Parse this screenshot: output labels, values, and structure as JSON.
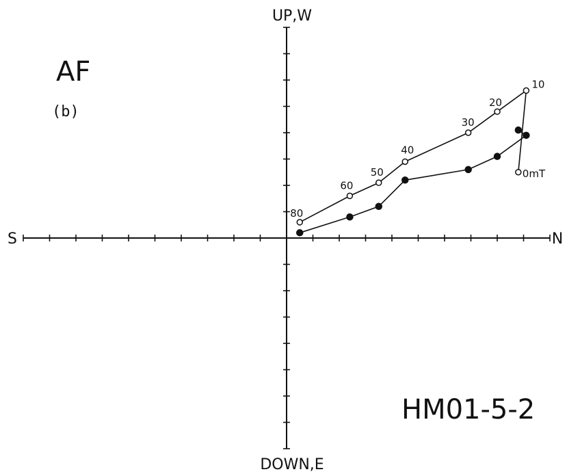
{
  "axes": {
    "up": "UP,W",
    "down": "DOWN,E",
    "left": "S",
    "right": "N"
  },
  "labels": {
    "method": "AF",
    "panel": "(b)",
    "sample": "HM01-5-2"
  },
  "step_labels": [
    "0mT",
    "10",
    "20",
    "30",
    "40",
    "50",
    "60",
    "80"
  ],
  "chart_data": {
    "type": "scatter",
    "title": "",
    "series": [
      {
        "symbol": "open-circle",
        "x": [
          8.8,
          9.1,
          8.0,
          6.9,
          4.5,
          3.5,
          2.4,
          0.5
        ],
        "y": [
          2.5,
          5.6,
          4.8,
          4.0,
          2.9,
          2.1,
          1.6,
          0.6
        ]
      },
      {
        "symbol": "filled-circle",
        "x": [
          8.8,
          9.1,
          8.0,
          6.9,
          4.5,
          3.5,
          2.4,
          0.5
        ],
        "y": [
          4.1,
          3.9,
          3.1,
          2.6,
          2.2,
          1.2,
          0.8,
          0.2
        ]
      }
    ],
    "xlim": [
      -10,
      10
    ],
    "ylim": [
      -8,
      8
    ],
    "xlabel_left": "S",
    "xlabel_right": "N",
    "ylabel_top": "UP,W",
    "ylabel_bottom": "DOWN,E",
    "grid": false,
    "colors": {
      "ink": "#111111"
    }
  }
}
